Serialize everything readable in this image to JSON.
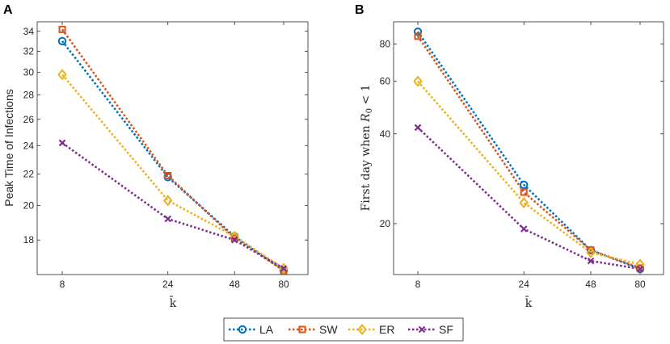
{
  "chart_data": [
    {
      "panel": "A",
      "type": "line",
      "scale": "log",
      "x": [
        8,
        24,
        48,
        80
      ],
      "xticks": [
        "8",
        "24",
        "48",
        "80"
      ],
      "xlabel": "k̄",
      "ylabel": "Peak Time of Infections",
      "ylim": [
        16.2,
        35
      ],
      "yticks": [
        18,
        20,
        22,
        24,
        26,
        28,
        30,
        32,
        34
      ],
      "series": [
        {
          "name": "LA",
          "values": [
            33.0,
            21.8,
            18.2,
            16.4
          ]
        },
        {
          "name": "SW",
          "values": [
            34.2,
            21.9,
            18.1,
            16.4
          ]
        },
        {
          "name": "ER",
          "values": [
            29.8,
            20.3,
            18.2,
            16.5
          ]
        },
        {
          "name": "SF",
          "values": [
            24.2,
            19.2,
            18.0,
            16.5
          ]
        }
      ]
    },
    {
      "panel": "B",
      "type": "line",
      "scale": "log",
      "x": [
        8,
        24,
        48,
        80
      ],
      "xticks": [
        "8",
        "24",
        "48",
        "80"
      ],
      "xlabel": "k̄",
      "ylabel_text": "First day when ",
      "ylabel_math": "R",
      "ylabel_sub": "0",
      "ylabel_rest": " < 1",
      "ylim": [
        13.5,
        95
      ],
      "yticks": [
        20,
        40,
        60,
        80
      ],
      "series": [
        {
          "name": "LA",
          "values": [
            88,
            27,
            16.3,
            14.1
          ]
        },
        {
          "name": "SW",
          "values": [
            85,
            25.5,
            16.3,
            14.2
          ]
        },
        {
          "name": "ER",
          "values": [
            60,
            23.5,
            16.0,
            14.6
          ]
        },
        {
          "name": "SF",
          "values": [
            42,
            19.2,
            15.0,
            14.1
          ]
        }
      ]
    }
  ],
  "legend": [
    {
      "name": "LA",
      "color": "#0072BD",
      "marker": "circle"
    },
    {
      "name": "SW",
      "color": "#D95319",
      "marker": "square"
    },
    {
      "name": "ER",
      "color": "#EDB120",
      "marker": "diamond"
    },
    {
      "name": "SF",
      "color": "#7E2F8E",
      "marker": "cross"
    }
  ]
}
